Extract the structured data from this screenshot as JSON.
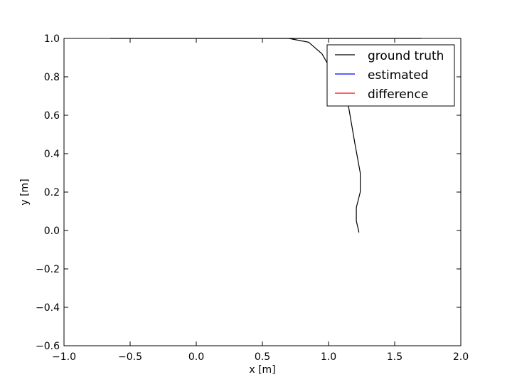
{
  "chart_data": {
    "type": "line",
    "title": "",
    "xlabel": "x [m]",
    "ylabel": "y [m]",
    "xlim": [
      -1.0,
      2.0
    ],
    "ylim": [
      -0.6,
      1.0
    ],
    "xticks": [
      -1.0,
      -0.5,
      0.0,
      0.5,
      1.0,
      1.5,
      2.0
    ],
    "xtick_labels": [
      "−1.0",
      "−0.5",
      "0.0",
      "0.5",
      "1.0",
      "1.5",
      "2.0"
    ],
    "yticks": [
      -0.6,
      -0.4,
      -0.2,
      0.0,
      0.2,
      0.4,
      0.6,
      0.8,
      1.0
    ],
    "ytick_labels": [
      "−0.6",
      "−0.4",
      "−0.2",
      "0.0",
      "0.2",
      "0.4",
      "0.6",
      "0.8",
      "1.0"
    ],
    "grid": false,
    "legend_position": "top-right",
    "series": [
      {
        "name": "ground truth",
        "color": "#000000",
        "x": [
          1.23,
          1.21,
          1.21,
          1.24,
          1.24,
          1.2,
          1.15,
          1.05,
          0.95,
          0.85,
          0.7,
          0.5,
          0.3,
          0.1,
          -0.05,
          -0.2,
          -0.4,
          -0.55,
          -0.63,
          -0.65,
          -0.62,
          -0.55,
          -0.4,
          -0.3,
          -0.2,
          -0.1,
          -0.03,
          0.05,
          0.2,
          0.4,
          0.6,
          0.8,
          0.95,
          1.05,
          1.15,
          1.3,
          1.5,
          1.62,
          1.68,
          1.7,
          1.68,
          1.6,
          1.5,
          1.4,
          1.3,
          1.2,
          1.0,
          0.8,
          0.6,
          0.45,
          0.3,
          0.2,
          0.15,
          0.15,
          0.1,
          0.0,
          -0.03,
          -0.05
        ],
        "y": [
          -0.01,
          0.05,
          0.12,
          0.2,
          0.3,
          0.45,
          0.65,
          0.8,
          0.92,
          0.98,
          1.0,
          1.0,
          1.0,
          1.0,
          1.0,
          1.0,
          1.0,
          1.0,
          1.0,
          1.0,
          1.0,
          1.0,
          1.0,
          1.0,
          1.0,
          1.0,
          1.0,
          1.0,
          1.0,
          1.0,
          1.0,
          1.0,
          1.0,
          1.0,
          1.0,
          1.0,
          1.0,
          1.0,
          1.0,
          1.0,
          1.0,
          1.0,
          1.0,
          1.0,
          1.0,
          1.0,
          1.0,
          1.0,
          1.0,
          1.0,
          1.0,
          1.0,
          1.0,
          1.0,
          1.0,
          1.0,
          1.0,
          1.0
        ]
      },
      {
        "name": "estimated",
        "color": "#0000ff",
        "x": [],
        "y": []
      },
      {
        "name": "difference",
        "color": "#ff0000",
        "x": [],
        "y": []
      }
    ]
  }
}
